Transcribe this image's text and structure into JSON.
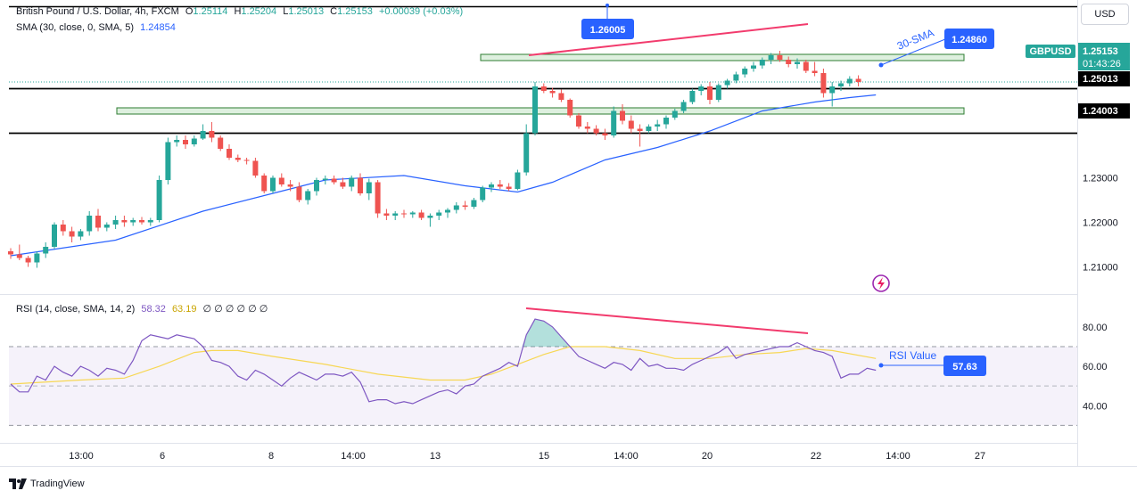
{
  "header": {
    "main_legend": {
      "symbol": "British Pound / U.S. Dollar, 4h, FXCM",
      "open_label": "O",
      "open": "1.25114",
      "high_label": "H",
      "high": "1.25204",
      "low_label": "L",
      "low": "1.25013",
      "close_label": "C",
      "close": "1.25153",
      "change": "+0.00039 (+0.03%)"
    },
    "sma_legend": {
      "label": "SMA (30, close, 0, SMA, 5)",
      "value": "1.24854"
    },
    "rsi_legend": {
      "label": "RSI (14, close, SMA, 14, 2)",
      "value": "58.32",
      "ma": "63.19",
      "extras": "∅ ∅ ∅ ∅ ∅ ∅"
    },
    "currency_button": "USD"
  },
  "price_axis": {
    "ticks": [
      "1.23000",
      "1.22000",
      "1.21000"
    ],
    "ticker_tag": "GBPUSD",
    "last_price": "1.25153",
    "countdown": "01:43:26"
  },
  "rsi_axis": {
    "ticks": [
      "80.00",
      "60.00",
      "40.00"
    ]
  },
  "time_axis": {
    "ticks": [
      "13:00",
      "6",
      "8",
      "14:00",
      "13",
      "15",
      "14:00",
      "20",
      "22",
      "14:00",
      "27"
    ]
  },
  "annotations": {
    "resistance": "1.26005",
    "support_1": "1.25013",
    "support_2": "1.24003",
    "sma_callout": "1.24860",
    "sma_label": "30-SMA",
    "rsi_label": "RSI Value",
    "rsi_callout": "57.63"
  },
  "branding": {
    "name": "TradingView"
  },
  "colors": {
    "up": "#26a69a",
    "down": "#ef5350",
    "sma": "#2962ff",
    "rsi": "#7e57c2",
    "rsi_ma": "#f7d754",
    "annotation": "#2962ff",
    "divergence": "#f23b6d",
    "zone": "#2e7d32"
  },
  "chart_data": {
    "type": "candlestick",
    "instrument": "GBPUSD",
    "timeframe": "4h",
    "ylim": [
      1.2045,
      1.2685
    ],
    "candles_ohlc": [
      [
        1.2135,
        1.2142,
        1.2118,
        1.2128
      ],
      [
        1.2128,
        1.215,
        1.2115,
        1.212
      ],
      [
        1.212,
        1.2125,
        1.21,
        1.211
      ],
      [
        1.211,
        1.2135,
        1.2098,
        1.213
      ],
      [
        1.213,
        1.2155,
        1.212,
        1.2145
      ],
      [
        1.2145,
        1.22,
        1.214,
        1.2195
      ],
      [
        1.2195,
        1.2205,
        1.217,
        1.218
      ],
      [
        1.218,
        1.219,
        1.2155,
        1.2168
      ],
      [
        1.2168,
        1.2185,
        1.216,
        1.218
      ],
      [
        1.218,
        1.2225,
        1.217,
        1.2215
      ],
      [
        1.2215,
        1.223,
        1.218,
        1.2188
      ],
      [
        1.2188,
        1.22,
        1.218,
        1.2195
      ],
      [
        1.2195,
        1.2215,
        1.2185,
        1.2205
      ],
      [
        1.2205,
        1.2215,
        1.219,
        1.22
      ],
      [
        1.22,
        1.221,
        1.2192,
        1.2205
      ],
      [
        1.2205,
        1.2212,
        1.2195,
        1.22
      ],
      [
        1.22,
        1.221,
        1.2192,
        1.2205
      ],
      [
        1.2205,
        1.2305,
        1.22,
        1.2295
      ],
      [
        1.2295,
        1.239,
        1.2285,
        1.238
      ],
      [
        1.238,
        1.2395,
        1.237,
        1.2385
      ],
      [
        1.2385,
        1.2395,
        1.2365,
        1.2375
      ],
      [
        1.2375,
        1.2395,
        1.237,
        1.2388
      ],
      [
        1.2388,
        1.242,
        1.2385,
        1.2405
      ],
      [
        1.2405,
        1.2425,
        1.238,
        1.239
      ],
      [
        1.239,
        1.2395,
        1.236,
        1.2365
      ],
      [
        1.2365,
        1.2375,
        1.234,
        1.2345
      ],
      [
        1.2345,
        1.2352,
        1.2335,
        1.234
      ],
      [
        1.234,
        1.2345,
        1.233,
        1.2338
      ],
      [
        1.2338,
        1.2345,
        1.23,
        1.2305
      ],
      [
        1.2305,
        1.231,
        1.2265,
        1.227
      ],
      [
        1.227,
        1.2305,
        1.2265,
        1.23
      ],
      [
        1.23,
        1.231,
        1.228,
        1.2285
      ],
      [
        1.2285,
        1.2295,
        1.227,
        1.228
      ],
      [
        1.228,
        1.229,
        1.2245,
        1.225
      ],
      [
        1.225,
        1.2275,
        1.224,
        1.227
      ],
      [
        1.227,
        1.23,
        1.226,
        1.2295
      ],
      [
        1.2295,
        1.2305,
        1.2285,
        1.2298
      ],
      [
        1.2298,
        1.2305,
        1.2285,
        1.229
      ],
      [
        1.229,
        1.23,
        1.2275,
        1.228
      ],
      [
        1.228,
        1.2305,
        1.227,
        1.23
      ],
      [
        1.23,
        1.231,
        1.226,
        1.2265
      ],
      [
        1.2265,
        1.2298,
        1.225,
        1.229
      ],
      [
        1.229,
        1.2295,
        1.221,
        1.222
      ],
      [
        1.222,
        1.223,
        1.2205,
        1.2215
      ],
      [
        1.2215,
        1.2225,
        1.2205,
        1.222
      ],
      [
        1.222,
        1.2228,
        1.221,
        1.2218
      ],
      [
        1.2218,
        1.2225,
        1.221,
        1.2222
      ],
      [
        1.2222,
        1.2228,
        1.2205,
        1.221
      ],
      [
        1.221,
        1.222,
        1.219,
        1.2215
      ],
      [
        1.2215,
        1.2228,
        1.2205,
        1.2222
      ],
      [
        1.2222,
        1.2232,
        1.221,
        1.2228
      ],
      [
        1.2228,
        1.2245,
        1.222,
        1.2238
      ],
      [
        1.2238,
        1.2248,
        1.2228,
        1.2235
      ],
      [
        1.2235,
        1.2255,
        1.223,
        1.225
      ],
      [
        1.225,
        1.2282,
        1.2245,
        1.2278
      ],
      [
        1.2278,
        1.229,
        1.2268,
        1.2285
      ],
      [
        1.2285,
        1.2295,
        1.2275,
        1.228
      ],
      [
        1.228,
        1.2288,
        1.227,
        1.2275
      ],
      [
        1.2275,
        1.2318,
        1.2272,
        1.2312
      ],
      [
        1.2312,
        1.242,
        1.2305,
        1.24
      ],
      [
        1.24,
        1.2515,
        1.2395,
        1.2505
      ],
      [
        1.2505,
        1.2512,
        1.249,
        1.2495
      ],
      [
        1.2495,
        1.2502,
        1.248,
        1.249
      ],
      [
        1.249,
        1.2498,
        1.247,
        1.2475
      ],
      [
        1.2475,
        1.2478,
        1.2435,
        1.244
      ],
      [
        1.244,
        1.2445,
        1.241,
        1.2415
      ],
      [
        1.2415,
        1.2425,
        1.24,
        1.241
      ],
      [
        1.241,
        1.2418,
        1.2395,
        1.24
      ],
      [
        1.24,
        1.241,
        1.2385,
        1.2395
      ],
      [
        1.2395,
        1.246,
        1.239,
        1.245
      ],
      [
        1.245,
        1.2465,
        1.242,
        1.2428
      ],
      [
        1.2428,
        1.244,
        1.24,
        1.241
      ],
      [
        1.241,
        1.242,
        1.237,
        1.2405
      ],
      [
        1.2405,
        1.242,
        1.24,
        1.2415
      ],
      [
        1.2415,
        1.243,
        1.2405,
        1.242
      ],
      [
        1.242,
        1.244,
        1.241,
        1.2435
      ],
      [
        1.2435,
        1.2455,
        1.243,
        1.245
      ],
      [
        1.245,
        1.2475,
        1.2445,
        1.247
      ],
      [
        1.247,
        1.25,
        1.2465,
        1.2495
      ],
      [
        1.2495,
        1.251,
        1.2485,
        1.2505
      ],
      [
        1.2505,
        1.2515,
        1.2465,
        1.2475
      ],
      [
        1.2475,
        1.2512,
        1.247,
        1.2508
      ],
      [
        1.2508,
        1.2522,
        1.25,
        1.2518
      ],
      [
        1.2518,
        1.2538,
        1.2512,
        1.2532
      ],
      [
        1.2532,
        1.255,
        1.2525,
        1.2545
      ],
      [
        1.2545,
        1.256,
        1.2538,
        1.2552
      ],
      [
        1.2552,
        1.257,
        1.2545,
        1.2565
      ],
      [
        1.2565,
        1.258,
        1.2555,
        1.2575
      ],
      [
        1.2575,
        1.2585,
        1.256,
        1.2565
      ],
      [
        1.2565,
        1.2572,
        1.2548,
        1.2555
      ],
      [
        1.2555,
        1.2568,
        1.2545,
        1.256
      ],
      [
        1.256,
        1.2565,
        1.2535,
        1.254
      ],
      [
        1.254,
        1.256,
        1.2528,
        1.2535
      ],
      [
        1.2535,
        1.2545,
        1.248,
        1.249
      ],
      [
        1.249,
        1.2515,
        1.246,
        1.2505
      ],
      [
        1.2505,
        1.2518,
        1.2495,
        1.2512
      ],
      [
        1.2512,
        1.2528,
        1.2505,
        1.2522
      ],
      [
        1.2522,
        1.253,
        1.2505,
        1.2515
      ]
    ],
    "sma_30": [
      [
        0,
        1.2125
      ],
      [
        12,
        1.216
      ],
      [
        22,
        1.2225
      ],
      [
        31,
        1.227
      ],
      [
        36,
        1.2295
      ],
      [
        45,
        1.2305
      ],
      [
        52,
        1.2282
      ],
      [
        58,
        1.2268
      ],
      [
        62,
        1.229
      ],
      [
        68,
        1.234
      ],
      [
        74,
        1.2368
      ],
      [
        80,
        1.2405
      ],
      [
        86,
        1.245
      ],
      [
        92,
        1.247
      ],
      [
        96,
        1.248
      ],
      [
        99,
        1.2486
      ]
    ],
    "levels": [
      1.26,
      1.25,
      1.24
    ],
    "rsi_ylim": [
      22,
      94
    ],
    "rsi": [
      [
        0,
        51
      ],
      [
        1,
        47
      ],
      [
        2,
        47
      ],
      [
        3,
        55
      ],
      [
        4,
        53
      ],
      [
        5,
        60
      ],
      [
        6,
        57
      ],
      [
        7,
        55
      ],
      [
        8,
        60
      ],
      [
        9,
        58
      ],
      [
        10,
        55
      ],
      [
        11,
        59
      ],
      [
        12,
        58
      ],
      [
        13,
        56
      ],
      [
        14,
        63
      ],
      [
        15,
        73
      ],
      [
        16,
        76
      ],
      [
        17,
        75
      ],
      [
        18,
        74
      ],
      [
        19,
        76
      ],
      [
        20,
        75
      ],
      [
        21,
        74
      ],
      [
        22,
        70
      ],
      [
        23,
        63
      ],
      [
        24,
        62
      ],
      [
        25,
        60
      ],
      [
        26,
        55
      ],
      [
        27,
        53
      ],
      [
        28,
        58
      ],
      [
        29,
        56
      ],
      [
        30,
        53
      ],
      [
        31,
        50
      ],
      [
        32,
        54
      ],
      [
        33,
        57
      ],
      [
        34,
        55
      ],
      [
        35,
        53
      ],
      [
        36,
        56
      ],
      [
        37,
        56
      ],
      [
        38,
        55
      ],
      [
        39,
        57
      ],
      [
        40,
        52
      ],
      [
        41,
        42
      ],
      [
        42,
        43
      ],
      [
        43,
        43
      ],
      [
        44,
        41
      ],
      [
        45,
        42
      ],
      [
        46,
        41
      ],
      [
        47,
        43
      ],
      [
        48,
        45
      ],
      [
        49,
        47
      ],
      [
        50,
        48
      ],
      [
        51,
        46
      ],
      [
        52,
        50
      ],
      [
        53,
        51
      ],
      [
        54,
        55
      ],
      [
        55,
        57
      ],
      [
        56,
        59
      ],
      [
        57,
        62
      ],
      [
        58,
        60
      ],
      [
        59,
        76
      ],
      [
        60,
        84
      ],
      [
        61,
        83
      ],
      [
        62,
        80
      ],
      [
        63,
        75
      ],
      [
        64,
        70
      ],
      [
        65,
        65
      ],
      [
        66,
        63
      ],
      [
        67,
        61
      ],
      [
        68,
        59
      ],
      [
        69,
        62
      ],
      [
        70,
        61
      ],
      [
        71,
        58
      ],
      [
        72,
        64
      ],
      [
        73,
        60
      ],
      [
        74,
        61
      ],
      [
        75,
        59
      ],
      [
        76,
        59
      ],
      [
        77,
        58
      ],
      [
        78,
        61
      ],
      [
        79,
        63
      ],
      [
        80,
        65
      ],
      [
        81,
        67
      ],
      [
        82,
        70
      ],
      [
        83,
        64
      ],
      [
        84,
        66
      ],
      [
        85,
        67
      ],
      [
        86,
        68
      ],
      [
        87,
        69
      ],
      [
        88,
        70
      ],
      [
        89,
        70
      ],
      [
        90,
        72
      ],
      [
        91,
        70
      ],
      [
        92,
        68
      ],
      [
        93,
        67
      ],
      [
        94,
        65
      ],
      [
        95,
        54
      ],
      [
        96,
        56
      ],
      [
        97,
        56
      ],
      [
        98,
        59
      ],
      [
        99,
        58
      ]
    ],
    "rsi_ma": [
      [
        0,
        51
      ],
      [
        8,
        53
      ],
      [
        13,
        54
      ],
      [
        17,
        60
      ],
      [
        21,
        67
      ],
      [
        23,
        68
      ],
      [
        26,
        68
      ],
      [
        30,
        65
      ],
      [
        36,
        61
      ],
      [
        42,
        56
      ],
      [
        48,
        53
      ],
      [
        52,
        53
      ],
      [
        55,
        56
      ],
      [
        58,
        61
      ],
      [
        61,
        66
      ],
      [
        64,
        70
      ],
      [
        68,
        70
      ],
      [
        72,
        68
      ],
      [
        76,
        64
      ],
      [
        80,
        64
      ],
      [
        84,
        66
      ],
      [
        88,
        67
      ],
      [
        91,
        69
      ],
      [
        94,
        68
      ],
      [
        99,
        64
      ]
    ],
    "rsi_levels": [
      70,
      50,
      30
    ]
  }
}
